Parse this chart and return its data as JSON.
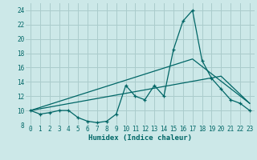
{
  "xlabel": "Humidex (Indice chaleur)",
  "bg_color": "#cce8e8",
  "grid_color": "#aacccc",
  "line_color": "#006666",
  "xlim": [
    -0.5,
    23.5
  ],
  "ylim": [
    8,
    25
  ],
  "xticks": [
    0,
    1,
    2,
    3,
    4,
    5,
    6,
    7,
    8,
    9,
    10,
    11,
    12,
    13,
    14,
    15,
    16,
    17,
    18,
    19,
    20,
    21,
    22,
    23
  ],
  "yticks": [
    8,
    10,
    12,
    14,
    16,
    18,
    20,
    22,
    24
  ],
  "line1_x": [
    0,
    1,
    2,
    3,
    4,
    5,
    6,
    7,
    8,
    9,
    10,
    11,
    12,
    13,
    14,
    15,
    16,
    17,
    18,
    19,
    20,
    21,
    22,
    23
  ],
  "line1_y": [
    10,
    9.5,
    9.7,
    10,
    10,
    9,
    8.5,
    8.3,
    8.5,
    9.5,
    13.5,
    12,
    11.5,
    13.5,
    12,
    18.5,
    22.5,
    24,
    17,
    14.5,
    13,
    11.5,
    11,
    10
  ],
  "line2_x": [
    0,
    17,
    23
  ],
  "line2_y": [
    10,
    17.2,
    11
  ],
  "line3_x": [
    0,
    20,
    23
  ],
  "line3_y": [
    10,
    14.8,
    11
  ],
  "font_family": "monospace",
  "tick_fontsize": 5.5,
  "xlabel_fontsize": 6.5
}
